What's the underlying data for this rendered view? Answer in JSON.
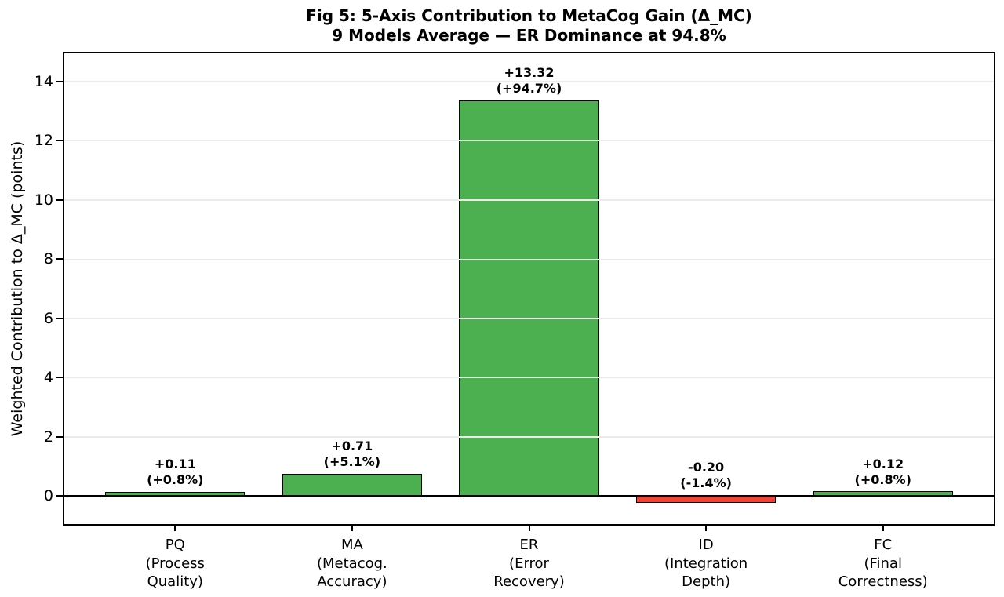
{
  "figure": {
    "title": "Fig 5: 5-Axis Contribution to MetaCog Gain (Δ_MC)",
    "subtitle": "9 Models Average — ER Dominance at 94.8%"
  },
  "chart_data": {
    "type": "bar",
    "title": "Fig 5: 5-Axis Contribution to MetaCog Gain (Δ_MC)",
    "subtitle": "9 Models Average — ER Dominance at 94.8%",
    "categories": [
      "PQ\n(Process\nQuality)",
      "MA\n(Metacog.\nAccuracy)",
      "ER\n(Error\nRecovery)",
      "ID\n(Integration\nDepth)",
      "FC\n(Final\nCorrectness)"
    ],
    "category_codes": [
      "PQ",
      "MA",
      "ER",
      "ID",
      "FC"
    ],
    "values": [
      0.11,
      0.71,
      13.32,
      -0.2,
      0.12
    ],
    "percent_of_total": [
      0.8,
      5.1,
      94.7,
      -1.4,
      0.8
    ],
    "bar_labels": [
      "+0.11\n(+0.8%)",
      "+0.71\n(+5.1%)",
      "+13.32\n(+94.7%)",
      "-0.20\n(-1.4%)",
      "+0.12\n(+0.8%)"
    ],
    "xlabel": "",
    "ylabel": "Weighted Contribution to Δ_MC (points)",
    "ylim": [
      -1,
      15
    ],
    "yticks": [
      0,
      2,
      4,
      6,
      8,
      10,
      12,
      14
    ],
    "grid": true,
    "grid_on_top_of_bars": true,
    "legend": false,
    "colors": {
      "positive_bar": "#4caf50",
      "negative_bar": "#f44336",
      "bar_edge": "#000000",
      "gridline": "#ebebeb",
      "zero_line": "#000000",
      "text": "#000000",
      "background": "#ffffff"
    }
  }
}
